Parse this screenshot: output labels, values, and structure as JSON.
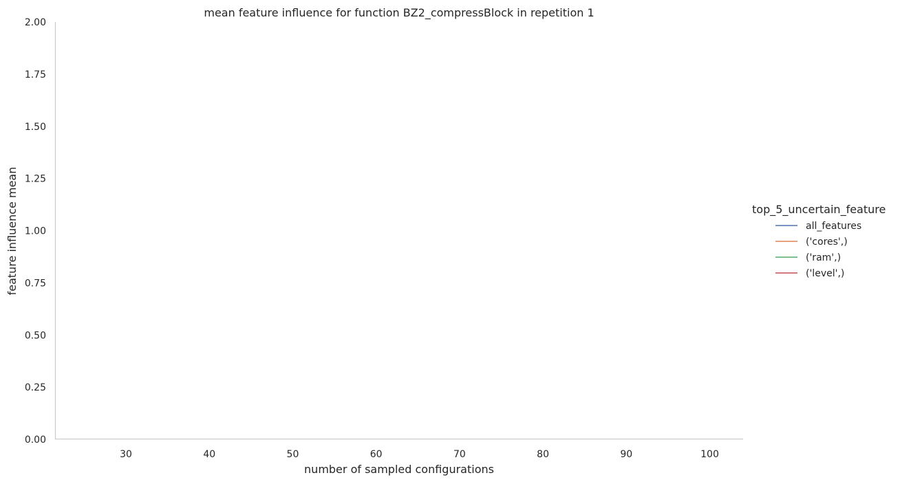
{
  "chart_data": {
    "type": "line",
    "title": "mean feature influence for function BZ2_compressBlock in repetition 1",
    "xlabel": "number of sampled configurations",
    "ylabel": "feature influence mean",
    "xlim": [
      21.5,
      104
    ],
    "ylim": [
      0,
      2
    ],
    "x_ticks": [
      30,
      40,
      50,
      60,
      70,
      80,
      90,
      100
    ],
    "y_ticks": [
      0.0,
      0.25,
      0.5,
      0.75,
      1.0,
      1.25,
      1.5,
      1.75,
      2.0
    ],
    "y_tick_labels": [
      "0.00",
      "0.25",
      "0.50",
      "0.75",
      "1.00",
      "1.25",
      "1.50",
      "1.75",
      "2.00"
    ],
    "grid": false,
    "legend_title": "top_5_uncertain_feature",
    "legend_position": "right",
    "series": [
      {
        "name": "all_features",
        "color": "#4c72b0",
        "x": [],
        "y": []
      },
      {
        "name": "('cores',)",
        "color": "#dd8452",
        "x": [],
        "y": []
      },
      {
        "name": "('ram',)",
        "color": "#55a868",
        "x": [],
        "y": []
      },
      {
        "name": "('level',)",
        "color": "#c44e52",
        "x": [],
        "y": []
      }
    ]
  }
}
